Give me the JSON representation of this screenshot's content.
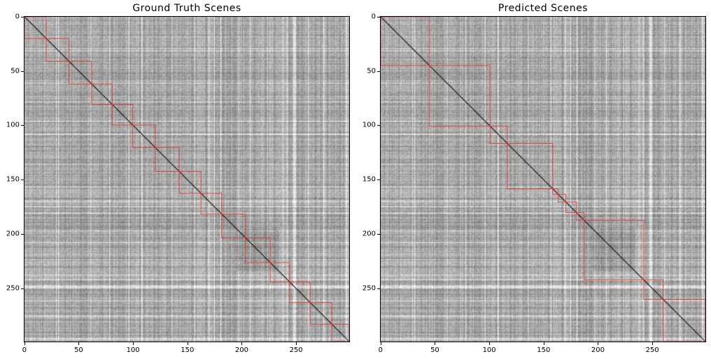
{
  "chart_data": [
    {
      "type": "heatmap",
      "title": "Ground Truth Scenes",
      "xlim": [
        0,
        300
      ],
      "ylim": [
        300,
        0
      ],
      "xticks": [
        "0",
        "50",
        "100",
        "150",
        "200",
        "250"
      ],
      "yticks": [
        "0",
        "50",
        "100",
        "150",
        "200",
        "250"
      ],
      "colormap": "gray",
      "scene_box_color": "#e8383b",
      "scene_boundaries": [
        0,
        20,
        41,
        62,
        81,
        100,
        121,
        143,
        163,
        182,
        204,
        227,
        245,
        264,
        284,
        300
      ]
    },
    {
      "type": "heatmap",
      "title": "Predicted Scenes",
      "xlim": [
        0,
        300
      ],
      "ylim": [
        300,
        0
      ],
      "xticks": [
        "0",
        "50",
        "100",
        "150",
        "200",
        "250"
      ],
      "yticks": [
        "0",
        "50",
        "100",
        "150",
        "200",
        "250"
      ],
      "colormap": "gray",
      "scene_box_color": "#e8383b",
      "scene_boundaries": [
        0,
        45,
        101,
        117,
        159,
        164,
        171,
        181,
        188,
        243,
        261,
        300
      ]
    }
  ]
}
